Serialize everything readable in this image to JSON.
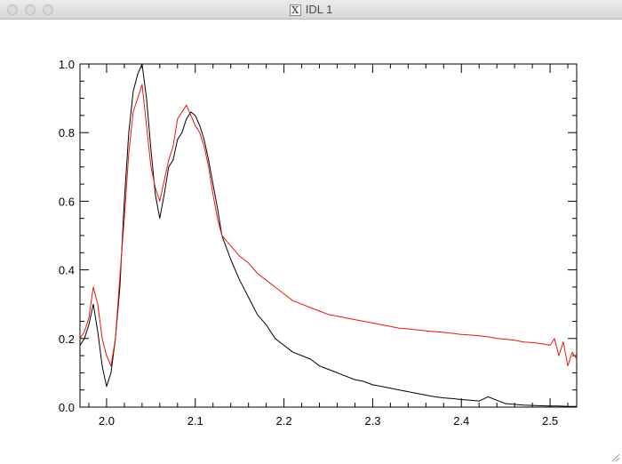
{
  "window": {
    "title": "IDL 1",
    "app_icon": "x11-icon"
  },
  "chart_data": {
    "type": "line",
    "title": "",
    "xlabel": "",
    "ylabel": "",
    "xlim": [
      1.97,
      2.53
    ],
    "ylim": [
      0.0,
      1.0
    ],
    "x_ticks": [
      "2.0",
      "2.1",
      "2.2",
      "2.3",
      "2.4",
      "2.5"
    ],
    "y_ticks": [
      "0.0",
      "0.2",
      "0.4",
      "0.6",
      "0.8",
      "1.0"
    ],
    "grid": false,
    "legend": "none",
    "series": [
      {
        "color": "#000000",
        "x": [
          1.97,
          1.975,
          1.98,
          1.985,
          1.99,
          1.995,
          2.0,
          2.005,
          2.01,
          2.015,
          2.02,
          2.025,
          2.03,
          2.035,
          2.04,
          2.045,
          2.05,
          2.055,
          2.06,
          2.065,
          2.07,
          2.075,
          2.08,
          2.085,
          2.09,
          2.095,
          2.1,
          2.105,
          2.11,
          2.115,
          2.12,
          2.125,
          2.13,
          2.14,
          2.15,
          2.16,
          2.17,
          2.18,
          2.19,
          2.2,
          2.21,
          2.22,
          2.23,
          2.24,
          2.25,
          2.26,
          2.27,
          2.28,
          2.29,
          2.3,
          2.31,
          2.32,
          2.33,
          2.34,
          2.35,
          2.36,
          2.37,
          2.38,
          2.39,
          2.4,
          2.41,
          2.42,
          2.43,
          2.44,
          2.445,
          2.45,
          2.46,
          2.47,
          2.48,
          2.49,
          2.5,
          2.51,
          2.52,
          2.525,
          2.53
        ],
        "y": [
          0.18,
          0.2,
          0.24,
          0.3,
          0.22,
          0.12,
          0.06,
          0.1,
          0.2,
          0.35,
          0.6,
          0.8,
          0.92,
          0.97,
          1.0,
          0.9,
          0.75,
          0.62,
          0.55,
          0.62,
          0.7,
          0.72,
          0.78,
          0.8,
          0.84,
          0.86,
          0.85,
          0.82,
          0.78,
          0.72,
          0.65,
          0.58,
          0.5,
          0.43,
          0.37,
          0.32,
          0.27,
          0.24,
          0.2,
          0.18,
          0.16,
          0.15,
          0.14,
          0.12,
          0.11,
          0.1,
          0.09,
          0.08,
          0.075,
          0.065,
          0.06,
          0.055,
          0.05,
          0.045,
          0.04,
          0.035,
          0.03,
          0.027,
          0.025,
          0.022,
          0.02,
          0.018,
          0.03,
          0.02,
          0.015,
          0.01,
          0.008,
          0.006,
          0.005,
          0.004,
          0.003,
          0.003,
          0.002,
          0.002,
          0.002
        ]
      },
      {
        "color": "#e8170c",
        "x": [
          1.97,
          1.975,
          1.98,
          1.985,
          1.99,
          1.995,
          2.0,
          2.005,
          2.01,
          2.015,
          2.02,
          2.025,
          2.03,
          2.035,
          2.04,
          2.045,
          2.05,
          2.055,
          2.06,
          2.065,
          2.07,
          2.075,
          2.08,
          2.085,
          2.09,
          2.095,
          2.1,
          2.105,
          2.11,
          2.115,
          2.12,
          2.125,
          2.13,
          2.14,
          2.15,
          2.16,
          2.17,
          2.18,
          2.19,
          2.2,
          2.21,
          2.22,
          2.23,
          2.24,
          2.25,
          2.26,
          2.27,
          2.28,
          2.29,
          2.3,
          2.31,
          2.32,
          2.33,
          2.34,
          2.35,
          2.36,
          2.37,
          2.38,
          2.39,
          2.4,
          2.41,
          2.42,
          2.43,
          2.44,
          2.45,
          2.46,
          2.47,
          2.48,
          2.49,
          2.5,
          2.505,
          2.51,
          2.515,
          2.52,
          2.525,
          2.53
        ],
        "y": [
          0.2,
          0.22,
          0.26,
          0.35,
          0.3,
          0.2,
          0.15,
          0.12,
          0.2,
          0.38,
          0.55,
          0.74,
          0.86,
          0.9,
          0.94,
          0.82,
          0.7,
          0.64,
          0.6,
          0.66,
          0.72,
          0.76,
          0.84,
          0.86,
          0.88,
          0.85,
          0.82,
          0.8,
          0.76,
          0.7,
          0.62,
          0.55,
          0.5,
          0.47,
          0.44,
          0.42,
          0.39,
          0.37,
          0.35,
          0.33,
          0.31,
          0.3,
          0.29,
          0.28,
          0.27,
          0.265,
          0.26,
          0.255,
          0.25,
          0.245,
          0.24,
          0.235,
          0.23,
          0.228,
          0.225,
          0.222,
          0.22,
          0.218,
          0.215,
          0.212,
          0.21,
          0.208,
          0.205,
          0.2,
          0.198,
          0.195,
          0.19,
          0.188,
          0.185,
          0.18,
          0.2,
          0.15,
          0.19,
          0.12,
          0.16,
          0.14
        ]
      }
    ]
  }
}
